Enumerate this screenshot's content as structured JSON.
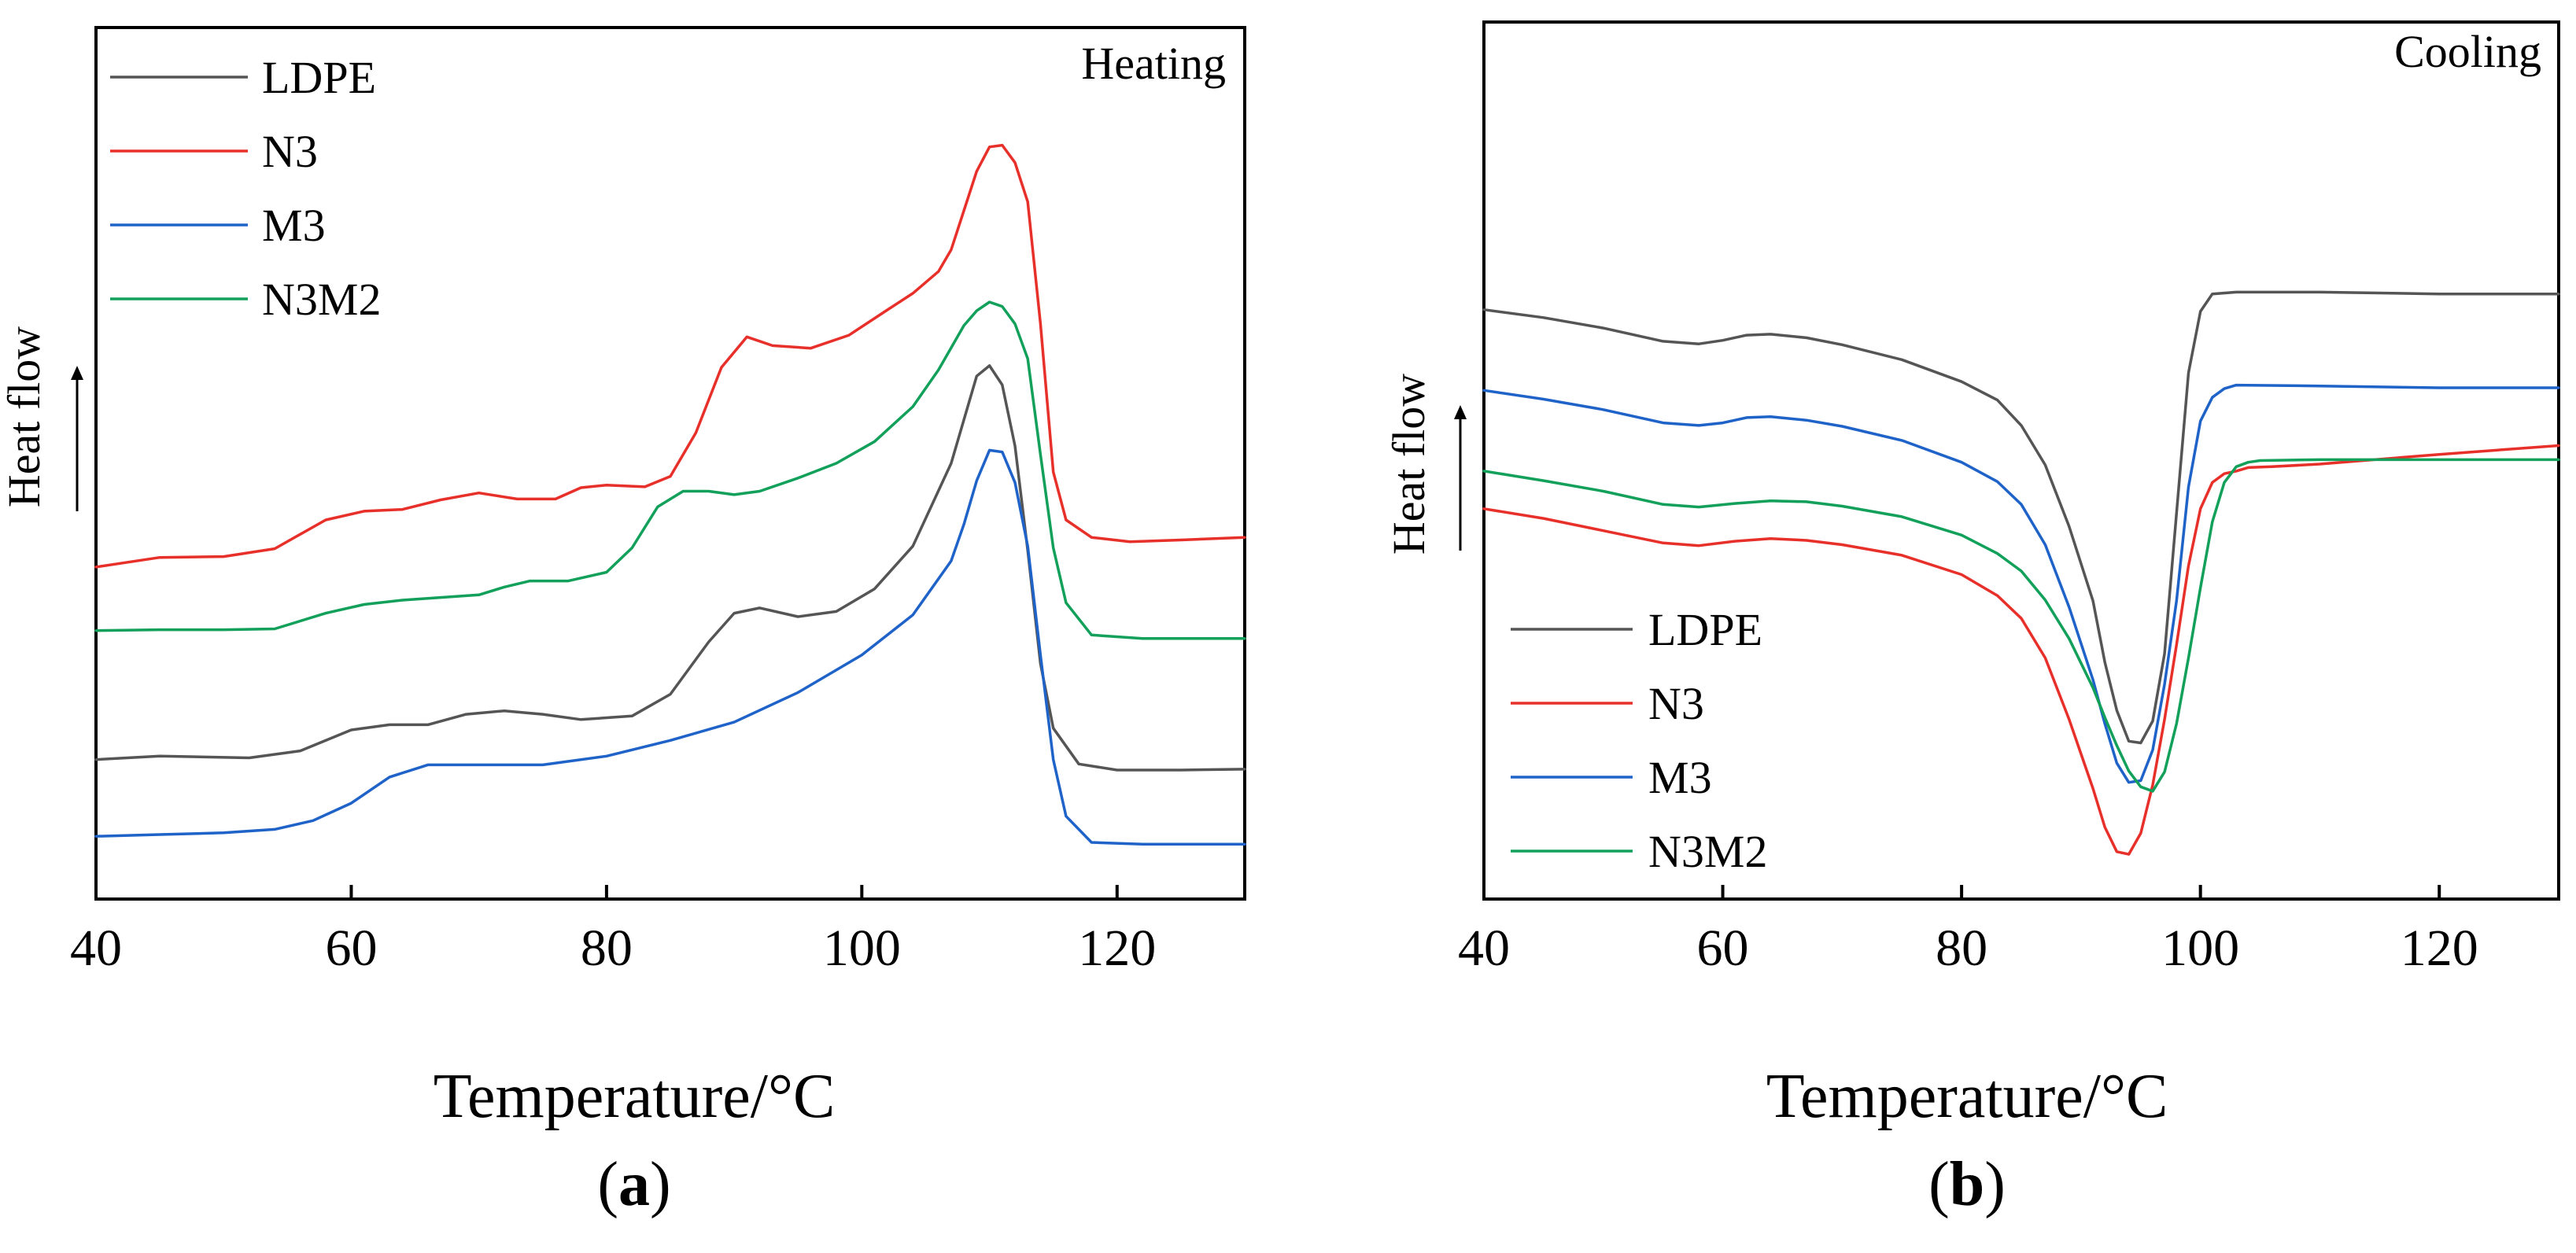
{
  "chart_data": [
    {
      "type": "line",
      "panel_label": "a",
      "mode": "Heating",
      "xlabel": "Temperature/°C",
      "ylabel": "Heat flow",
      "xlim": [
        40,
        130
      ],
      "ylim": [
        0,
        100
      ],
      "xticks": [
        40,
        60,
        80,
        100,
        120
      ],
      "legend": {
        "placement": "top-left"
      },
      "series": [
        {
          "name": "LDPE",
          "color": "#555555",
          "x": [
            40,
            45,
            52,
            56,
            60,
            63,
            66,
            69,
            72,
            75,
            78,
            82,
            85,
            88,
            90,
            92,
            95,
            98,
            101,
            104,
            107,
            109,
            110,
            111,
            112,
            113,
            114,
            115,
            117,
            120,
            125,
            130
          ],
          "y": [
            16,
            16.4,
            16.2,
            17,
            19.4,
            20,
            20,
            21.2,
            21.6,
            21.2,
            20.6,
            21,
            23.5,
            29.5,
            32.8,
            33.4,
            32.4,
            33,
            35.6,
            40.5,
            50,
            60,
            61.2,
            59,
            52,
            40,
            27,
            19.6,
            15.5,
            14.8,
            14.8,
            14.9
          ]
        },
        {
          "name": "N3",
          "color": "#e8302a",
          "x": [
            40,
            45,
            50,
            54,
            58,
            61,
            64,
            67,
            70,
            73,
            76,
            78,
            80,
            83,
            85,
            87,
            89,
            91,
            93,
            96,
            99,
            102,
            104,
            106,
            107,
            108,
            109,
            110,
            111,
            112,
            113,
            114,
            115,
            116,
            118,
            121,
            125,
            130
          ],
          "y": [
            38.1,
            39.2,
            39.3,
            40.2,
            43.5,
            44.5,
            44.7,
            45.8,
            46.6,
            45.9,
            45.9,
            47.2,
            47.5,
            47.3,
            48.5,
            53.5,
            61,
            64.5,
            63.5,
            63.2,
            64.7,
            67.6,
            69.5,
            72,
            74.5,
            79,
            83.5,
            86.3,
            86.5,
            84.5,
            80,
            66,
            49,
            43.5,
            41.5,
            41,
            41.2,
            41.5
          ]
        },
        {
          "name": "M3",
          "color": "#1f63c8",
          "x": [
            40,
            45,
            50,
            54,
            57,
            60,
            63,
            66,
            70,
            75,
            80,
            85,
            90,
            95,
            100,
            104,
            107,
            108,
            109,
            110,
            111,
            112,
            113,
            114,
            115,
            116,
            118,
            122,
            126,
            130
          ],
          "y": [
            7.2,
            7.4,
            7.6,
            8,
            9,
            11,
            14,
            15.4,
            15.4,
            15.4,
            16.4,
            18.2,
            20.3,
            23.7,
            28,
            32.6,
            38.8,
            43,
            48,
            51.5,
            51.3,
            47.8,
            40.5,
            28,
            16,
            9.5,
            6.5,
            6.3,
            6.3,
            6.3
          ]
        },
        {
          "name": "N3M2",
          "color": "#12a05a",
          "x": [
            40,
            45,
            50,
            54,
            58,
            61,
            64,
            67,
            70,
            72,
            74,
            77,
            80,
            82,
            84,
            86,
            88,
            90,
            92,
            95,
            98,
            101,
            104,
            106,
            108,
            109,
            110,
            111,
            112,
            113,
            114,
            115,
            116,
            118,
            122,
            126,
            130
          ],
          "y": [
            30.8,
            30.9,
            30.9,
            31,
            32.8,
            33.8,
            34.3,
            34.6,
            34.9,
            35.8,
            36.5,
            36.5,
            37.5,
            40.3,
            45,
            46.8,
            46.8,
            46.4,
            46.8,
            48.3,
            50,
            52.5,
            56.5,
            60.7,
            65.8,
            67.5,
            68.5,
            68,
            66,
            62,
            51,
            40.3,
            34,
            30.3,
            29.9,
            29.9,
            29.9
          ]
        }
      ]
    },
    {
      "type": "line",
      "panel_label": "b",
      "mode": "Cooling",
      "xlabel": "Temperature/°C",
      "ylabel": "Heat flow",
      "xlim": [
        40,
        130
      ],
      "ylim": [
        0,
        100
      ],
      "xticks": [
        40,
        60,
        80,
        100,
        120
      ],
      "legend": {
        "placement": "bottom-left"
      },
      "series": [
        {
          "name": "LDPE",
          "color": "#555555",
          "x": [
            40,
            45,
            50,
            55,
            58,
            60,
            62,
            64,
            67,
            70,
            75,
            80,
            83,
            85,
            87,
            89,
            91,
            92,
            93,
            94,
            95,
            96,
            97,
            98,
            99,
            100,
            101,
            103,
            110,
            120,
            130
          ],
          "y": [
            67.2,
            66.3,
            65.1,
            63.6,
            63.3,
            63.7,
            64.3,
            64.4,
            64,
            63.2,
            61.5,
            59,
            56.9,
            54,
            49.5,
            42.5,
            34,
            27,
            21.5,
            18,
            17.8,
            20.3,
            28,
            44,
            60,
            67,
            69,
            69.2,
            69.2,
            69,
            69
          ]
        },
        {
          "name": "N3",
          "color": "#e8302a",
          "x": [
            40,
            45,
            50,
            55,
            58,
            61,
            64,
            67,
            70,
            75,
            80,
            83,
            85,
            87,
            89,
            91,
            92,
            93,
            94,
            95,
            96,
            97,
            98,
            99,
            100,
            101,
            102,
            103,
            104,
            106,
            110,
            120,
            130
          ],
          "y": [
            44.5,
            43.4,
            42,
            40.6,
            40.3,
            40.8,
            41.1,
            40.9,
            40.4,
            39.2,
            37,
            34.6,
            32,
            27.5,
            20.5,
            12.6,
            8.2,
            5.4,
            5.1,
            7.5,
            13,
            20.5,
            29,
            38,
            44.5,
            47.5,
            48.5,
            48.8,
            49.2,
            49.3,
            49.6,
            50.7,
            51.7
          ]
        },
        {
          "name": "M3",
          "color": "#1f63c8",
          "x": [
            40,
            45,
            50,
            55,
            58,
            60,
            62,
            64,
            67,
            70,
            75,
            80,
            83,
            85,
            87,
            89,
            91,
            92,
            93,
            94,
            95,
            96,
            97,
            98,
            99,
            100,
            101,
            102,
            103,
            110,
            120,
            130
          ],
          "y": [
            58,
            57,
            55.8,
            54.3,
            54,
            54.3,
            54.9,
            55,
            54.6,
            53.9,
            52.3,
            49.8,
            47.6,
            45,
            40.4,
            33.3,
            25,
            20,
            15.5,
            13.3,
            13.5,
            17,
            24.5,
            34,
            47,
            54.5,
            57.2,
            58.2,
            58.6,
            58.5,
            58.3,
            58.3
          ]
        },
        {
          "name": "N3M2",
          "color": "#12a05a",
          "x": [
            40,
            45,
            50,
            55,
            58,
            61,
            64,
            67,
            70,
            75,
            80,
            83,
            85,
            87,
            89,
            91,
            92,
            93,
            94,
            95,
            96,
            97,
            98,
            99,
            100,
            101,
            102,
            103,
            104,
            105,
            110,
            120,
            130
          ],
          "y": [
            48.8,
            47.7,
            46.5,
            45,
            44.7,
            45.1,
            45.4,
            45.3,
            44.8,
            43.6,
            41.5,
            39.4,
            37.4,
            34.1,
            29.7,
            24.1,
            20.7,
            17.5,
            14.6,
            12.8,
            12.3,
            14.5,
            20,
            27.5,
            35.5,
            43,
            47.5,
            49.3,
            49.8,
            50,
            50.1,
            50.1,
            50.1
          ]
        }
      ]
    }
  ]
}
